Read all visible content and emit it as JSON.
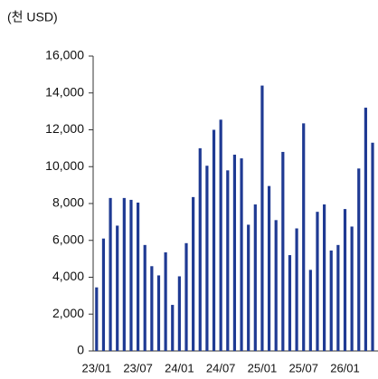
{
  "chart_data": {
    "type": "bar",
    "title": "(천 USD)",
    "categories": [
      "23/01",
      null,
      null,
      null,
      null,
      null,
      "23/07",
      null,
      null,
      null,
      null,
      null,
      "24/01",
      null,
      null,
      null,
      null,
      null,
      "24/07",
      null,
      null,
      null,
      null,
      null,
      "25/01",
      null,
      null,
      null,
      null,
      null,
      "25/07",
      null,
      null,
      null,
      null,
      null,
      "26/01",
      null,
      null,
      null,
      null
    ],
    "values": [
      3450,
      6100,
      8300,
      6800,
      8300,
      8200,
      8050,
      5750,
      4600,
      4100,
      5350,
      2500,
      4050,
      5850,
      8350,
      11000,
      10050,
      12000,
      12550,
      9800,
      10650,
      10450,
      6850,
      7950,
      14400,
      8950,
      7100,
      10800,
      5200,
      6650,
      12350,
      4400,
      7550,
      7950,
      5450,
      5750,
      7700,
      6750,
      9900,
      13200,
      11300
    ],
    "color": "#1f3a93",
    "ylim": [
      0,
      16000
    ],
    "yticks": [
      0,
      {
        "value": 2000,
        "label": "2,000"
      },
      {
        "value": 4000,
        "label": "4,000"
      },
      {
        "value": 6000,
        "label": "6,000"
      },
      {
        "value": 8000,
        "label": "8,000"
      },
      {
        "value": 10000,
        "label": "10,000"
      },
      {
        "value": 12000,
        "label": "12,000"
      },
      {
        "value": 14000,
        "label": "14,000"
      },
      {
        "value": 16000,
        "label": "16,000"
      }
    ],
    "grid": false
  }
}
